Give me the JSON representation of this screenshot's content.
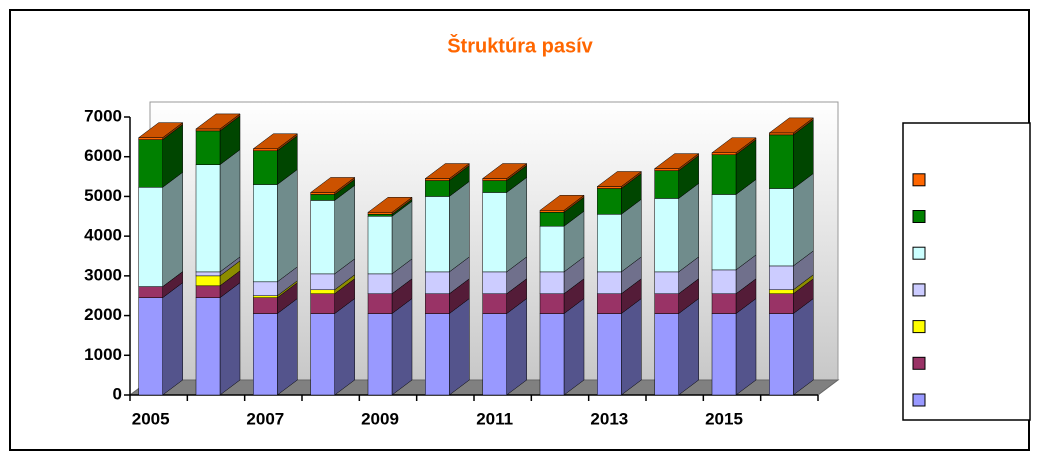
{
  "chart_data": {
    "type": "bar3d_stacked",
    "title": "Štruktúra pasív",
    "categories": [
      "2005",
      null,
      "2007",
      null,
      "2009",
      null,
      "2011",
      null,
      "2013",
      null,
      "2015",
      null
    ],
    "series": [
      {
        "color": "#9999ff",
        "values": [
          2450,
          2450,
          2050,
          2050,
          2050,
          2050,
          2050,
          2050,
          2050,
          2050,
          2050,
          2050
        ]
      },
      {
        "color": "#993366",
        "values": [
          280,
          300,
          400,
          500,
          500,
          500,
          500,
          500,
          500,
          500,
          500,
          500
        ]
      },
      {
        "color": "#ffff00",
        "values": [
          0,
          250,
          50,
          100,
          0,
          0,
          0,
          0,
          0,
          0,
          0,
          100
        ]
      },
      {
        "color": "#ccccff",
        "values": [
          0,
          100,
          350,
          400,
          500,
          550,
          550,
          550,
          550,
          550,
          600,
          600
        ]
      },
      {
        "color": "#ccffff",
        "values": [
          2500,
          2700,
          2450,
          1850,
          1450,
          1900,
          2000,
          1150,
          1450,
          1850,
          1900,
          1950
        ]
      },
      {
        "color": "#008000",
        "values": [
          1200,
          850,
          850,
          150,
          50,
          400,
          300,
          350,
          650,
          700,
          1000,
          1350
        ]
      },
      {
        "color": "#ff6600",
        "values": [
          50,
          50,
          50,
          50,
          50,
          50,
          50,
          50,
          50,
          50,
          50,
          50
        ]
      }
    ],
    "ylim": [
      0,
      7000
    ],
    "yticks": [
      0,
      1000,
      2000,
      3000,
      4000,
      5000,
      6000,
      7000
    ]
  }
}
